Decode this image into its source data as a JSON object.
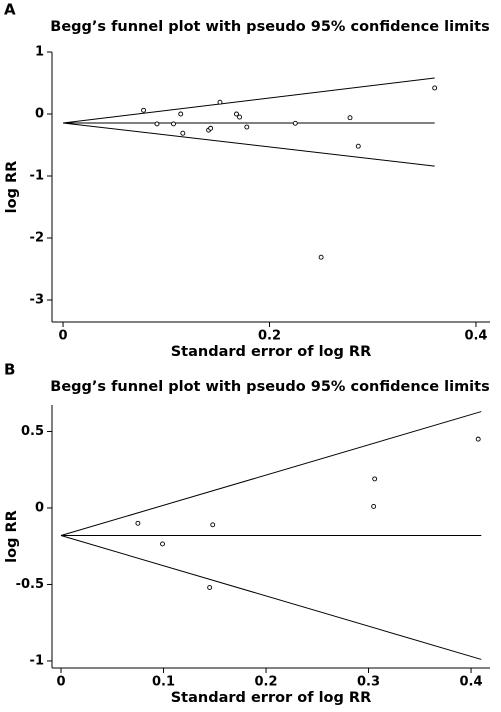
{
  "chart_data": [
    {
      "type": "funnel",
      "label": "A",
      "title": "Begg’s funnel plot with pseudo 95% confidence limits",
      "x_label": "Standard error of log RR",
      "y_label": "log RR",
      "x": [
        0.078,
        0.091,
        0.107,
        0.114,
        0.116,
        0.141,
        0.143,
        0.152,
        0.168,
        0.171,
        0.178,
        0.225,
        0.25,
        0.278,
        0.286,
        0.36
      ],
      "values": [
        0.06,
        -0.16,
        -0.16,
        0.0,
        -0.31,
        -0.26,
        -0.23,
        0.19,
        0.0,
        -0.05,
        -0.21,
        -0.15,
        -2.31,
        -0.06,
        -0.52,
        0.42
      ],
      "lines": [
        {
          "x": [
            0,
            0.36
          ],
          "values": [
            -0.145,
            0.58
          ]
        },
        {
          "x": [
            0,
            0.36
          ],
          "values": [
            -0.145,
            -0.145
          ]
        },
        {
          "x": [
            0,
            0.36
          ],
          "values": [
            -0.145,
            -0.84
          ]
        }
      ],
      "xlim": [
        -0.0107,
        0.4136
      ],
      "ylim": [
        -3.355,
        1.0
      ],
      "xticks": [
        0,
        0.2,
        0.4
      ],
      "yticks": [
        -3,
        -2,
        -1,
        0,
        1
      ]
    },
    {
      "type": "funnel",
      "label": "B",
      "title": "Begg’s funnel plot with pseudo 95% confidence limits",
      "x_label": "Standard error of log RR",
      "y_label": "log RR",
      "x": [
        0.075,
        0.099,
        0.145,
        0.148,
        0.305,
        0.306,
        0.407
      ],
      "values": [
        -0.1,
        -0.235,
        -0.52,
        -0.11,
        0.01,
        0.19,
        0.45
      ],
      "lines": [
        {
          "x": [
            0,
            0.41
          ],
          "values": [
            -0.18,
            0.63
          ]
        },
        {
          "x": [
            0,
            0.41
          ],
          "values": [
            -0.18,
            -0.18
          ]
        },
        {
          "x": [
            0,
            0.41
          ],
          "values": [
            -0.18,
            -0.99
          ]
        }
      ],
      "xlim": [
        -0.0088,
        0.4185
      ],
      "ylim": [
        -1.046,
        0.673
      ],
      "xticks": [
        0,
        0.1,
        0.2,
        0.3,
        0.4
      ],
      "yticks": [
        -1,
        -0.5,
        0,
        0.5
      ]
    }
  ]
}
